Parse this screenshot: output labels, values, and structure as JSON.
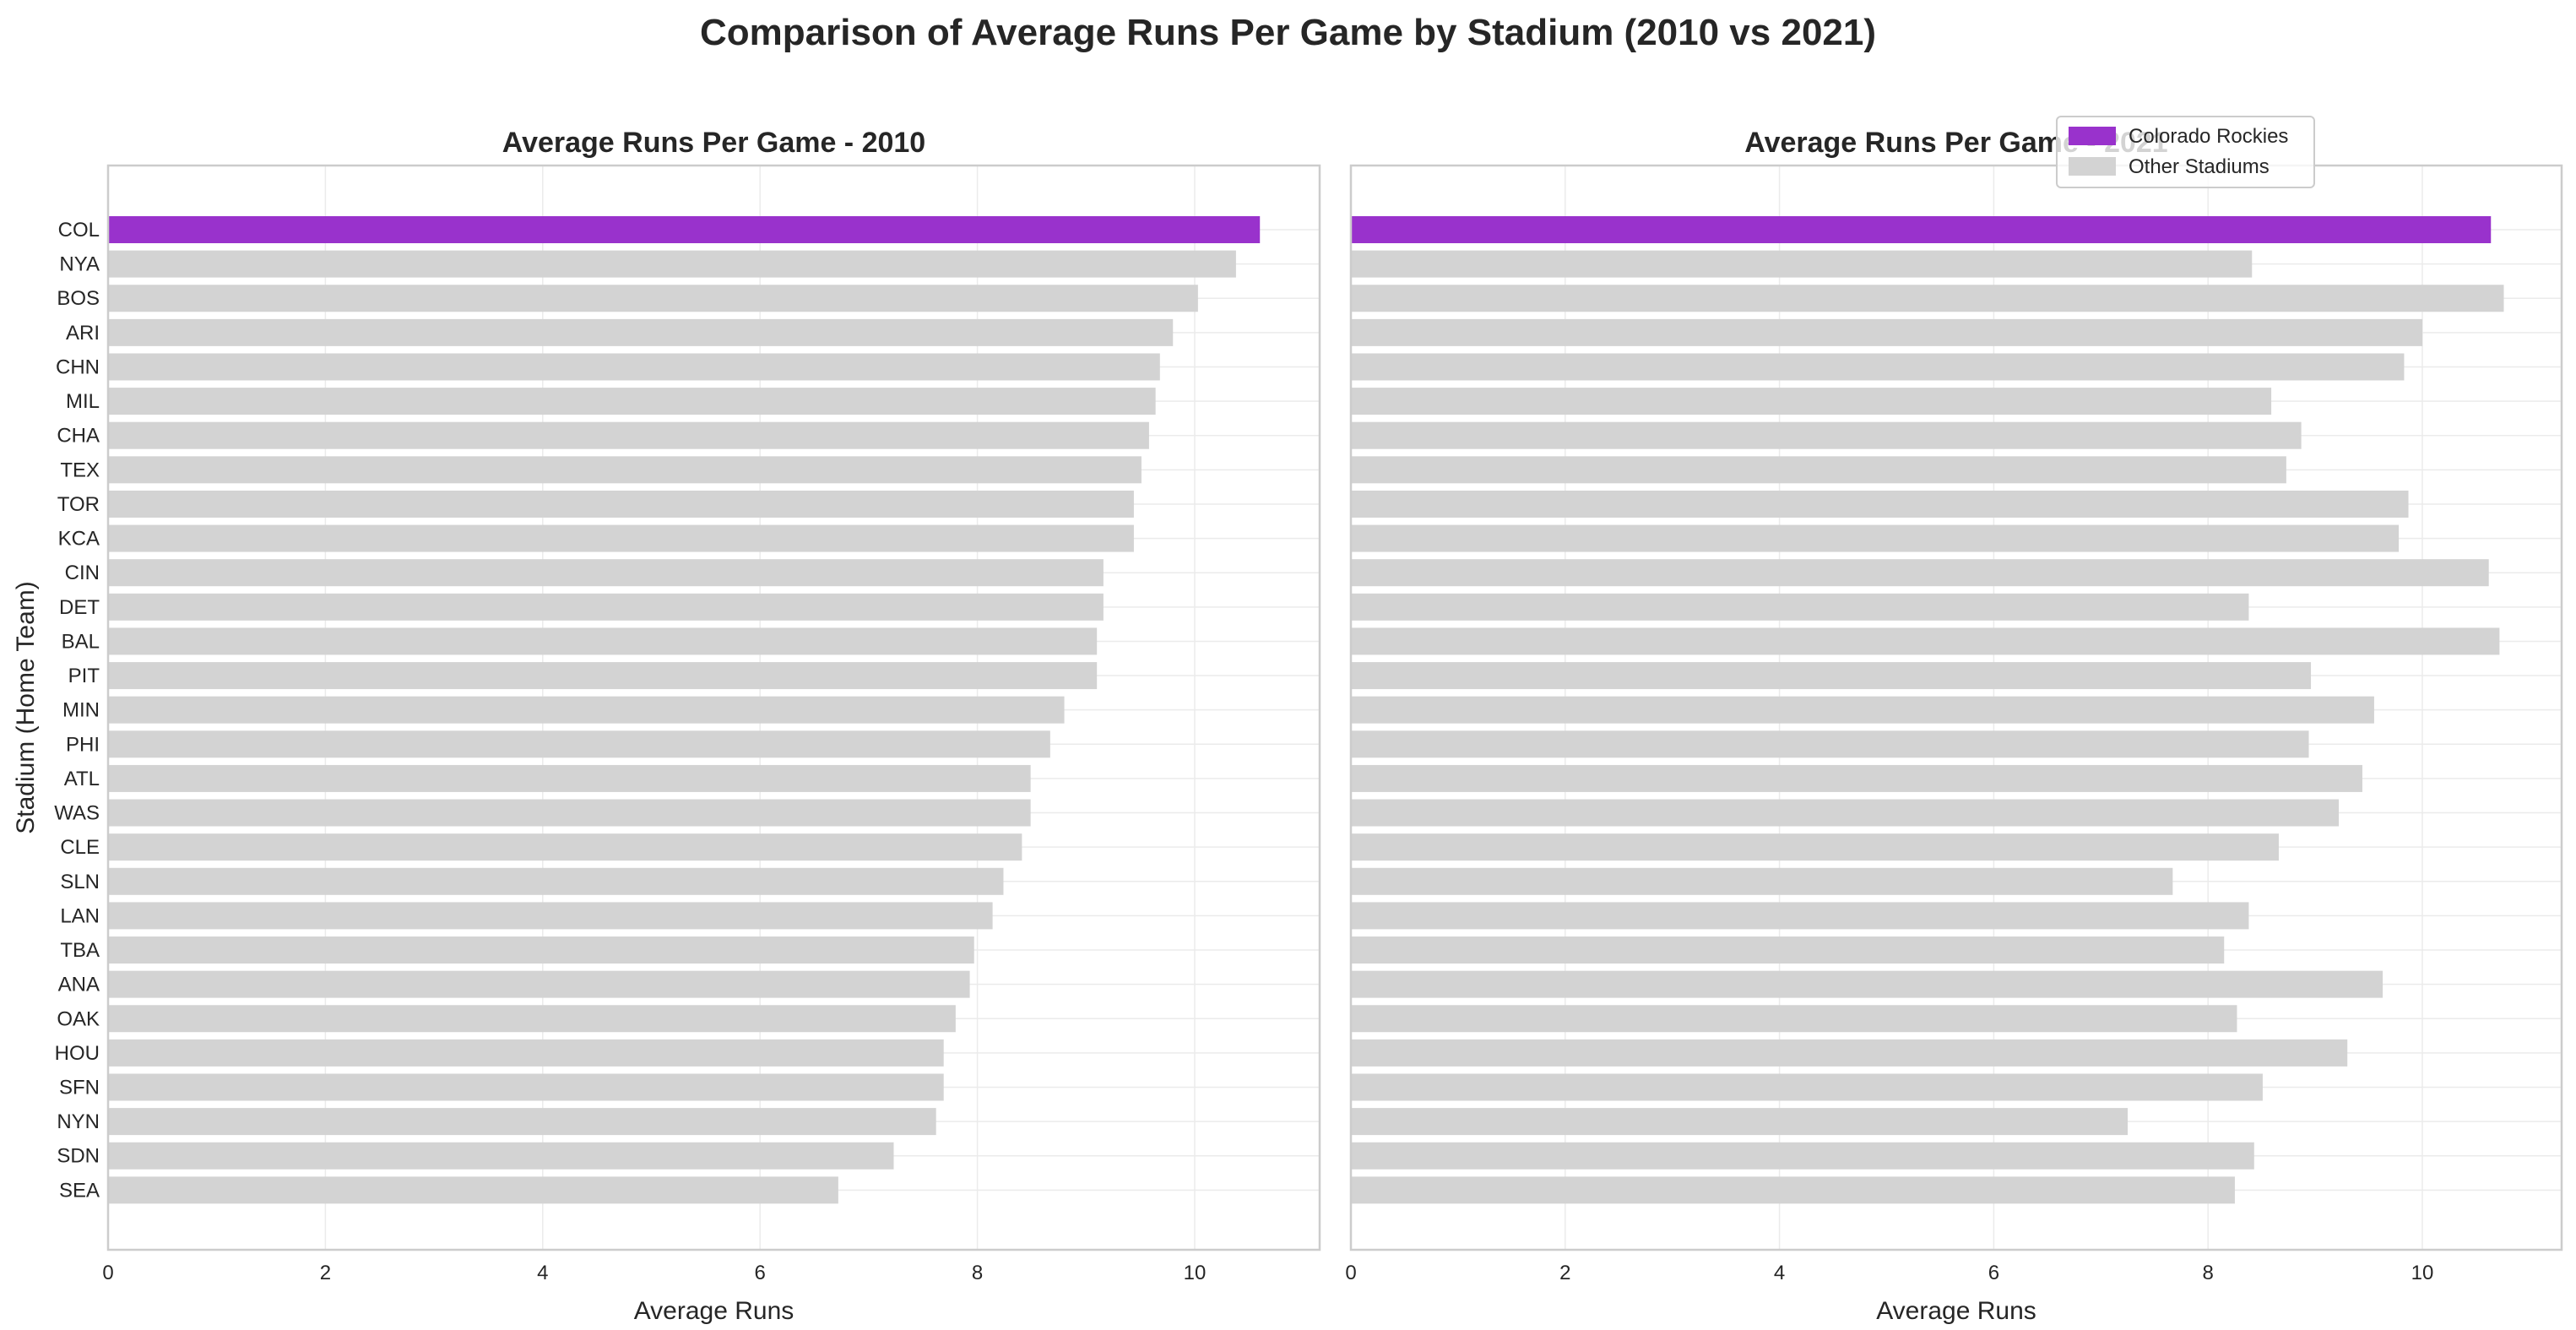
{
  "title": "Comparison of Average Runs Per Game by Stadium (2010 vs 2021)",
  "colors": {
    "highlight": "#9932CC",
    "other": "#D3D3D3",
    "grid": "#EBEBEB",
    "spine": "#CCCCCC",
    "text": "#262626"
  },
  "legend": {
    "placement": "upper-right",
    "items": [
      {
        "label": "Colorado Rockies",
        "color": "#9932CC"
      },
      {
        "label": "Other Stadiums",
        "color": "#D3D3D3"
      }
    ]
  },
  "chart_data": [
    {
      "type": "bar",
      "orientation": "horizontal",
      "title": "Average Runs Per Game - 2010",
      "xlabel": "Average Runs",
      "ylabel": "Stadium (Home Team)",
      "xlim": [
        0,
        11.15
      ],
      "xticks": [
        0,
        2,
        4,
        6,
        8,
        10
      ],
      "grid": true,
      "highlight": "COL",
      "categories": [
        "COL",
        "NYA",
        "BOS",
        "ARI",
        "CHN",
        "MIL",
        "CHA",
        "TEX",
        "TOR",
        "KCA",
        "CIN",
        "DET",
        "BAL",
        "PIT",
        "MIN",
        "PHI",
        "ATL",
        "WAS",
        "CLE",
        "SLN",
        "LAN",
        "TBA",
        "ANA",
        "OAK",
        "HOU",
        "SFN",
        "NYN",
        "SDN",
        "SEA"
      ],
      "values": [
        10.6,
        10.38,
        10.03,
        9.8,
        9.68,
        9.64,
        9.58,
        9.51,
        9.44,
        9.44,
        9.16,
        9.16,
        9.1,
        9.1,
        8.8,
        8.67,
        8.49,
        8.49,
        8.41,
        8.24,
        8.14,
        7.97,
        7.93,
        7.8,
        7.69,
        7.69,
        7.62,
        7.23,
        6.72
      ]
    },
    {
      "type": "bar",
      "orientation": "horizontal",
      "title": "Average Runs Per Game - 2021",
      "xlabel": "Average Runs",
      "ylabel": "",
      "xlim": [
        0,
        11.3
      ],
      "xticks": [
        0,
        2,
        4,
        6,
        8,
        10
      ],
      "grid": true,
      "highlight": "COL",
      "categories": [
        "COL",
        "NYA",
        "BOS",
        "ARI",
        "CHN",
        "MIL",
        "CHA",
        "TEX",
        "TOR",
        "KCA",
        "CIN",
        "DET",
        "BAL",
        "PIT",
        "MIN",
        "PHI",
        "ATL",
        "WAS",
        "CLE",
        "SLN",
        "LAN",
        "TBA",
        "ANA",
        "OAK",
        "HOU",
        "SFN",
        "NYN",
        "SDN",
        "SEA"
      ],
      "values": [
        10.64,
        8.41,
        10.76,
        10.0,
        9.83,
        8.59,
        8.87,
        8.73,
        9.87,
        9.78,
        10.62,
        8.38,
        10.72,
        8.96,
        9.55,
        8.94,
        9.44,
        9.22,
        8.66,
        7.67,
        8.38,
        8.15,
        9.63,
        8.27,
        9.3,
        8.51,
        7.25,
        8.43,
        8.25
      ]
    }
  ]
}
